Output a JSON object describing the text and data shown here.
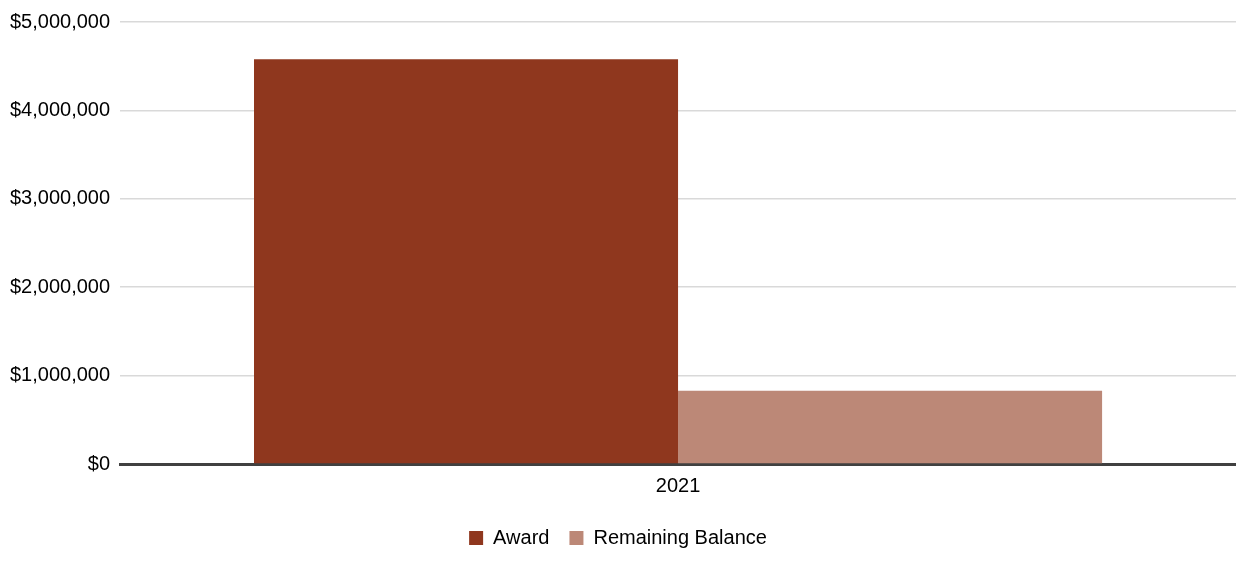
{
  "chart_data": {
    "type": "bar",
    "categories": [
      "2021"
    ],
    "series": [
      {
        "name": "Award",
        "color": "#8f371e",
        "values": [
          4580000
        ]
      },
      {
        "name": "Remaining Balance",
        "color": "#bc8877",
        "values": [
          830000
        ]
      }
    ],
    "ylim": [
      0,
      5000000
    ],
    "yticks": [
      {
        "value": 0,
        "label": "$0"
      },
      {
        "value": 1000000,
        "label": "$1,000,000"
      },
      {
        "value": 2000000,
        "label": "$2,000,000"
      },
      {
        "value": 3000000,
        "label": "$3,000,000"
      },
      {
        "value": 4000000,
        "label": "$4,000,000"
      },
      {
        "value": 5000000,
        "label": "$5,000,000"
      }
    ],
    "grid": "y",
    "legend": "bottom"
  }
}
